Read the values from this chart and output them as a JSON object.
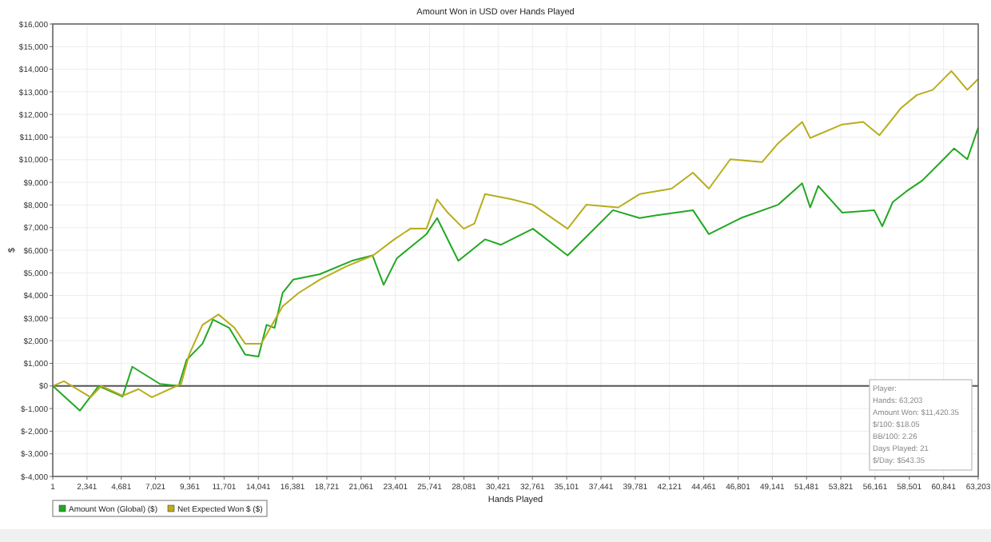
{
  "chart_data": {
    "type": "line",
    "title": "Amount Won in USD over Hands Played",
    "xlabel": "Hands Played",
    "ylabel": "$",
    "xlim": [
      1,
      63203
    ],
    "xticks": [
      1,
      {
        "value": 2341,
        "label": "2,341"
      },
      {
        "value": 4681,
        "label": "4,681"
      },
      {
        "value": 7021,
        "label": "7,021"
      },
      {
        "value": 9361,
        "label": "9,361"
      },
      {
        "value": 11701,
        "label": "11,701"
      },
      {
        "value": 14041,
        "label": "14,041"
      },
      {
        "value": 16381,
        "label": "16,381"
      },
      {
        "value": 18721,
        "label": "18,721"
      },
      {
        "value": 21061,
        "label": "21,061"
      },
      {
        "value": 23401,
        "label": "23,401"
      },
      {
        "value": 25741,
        "label": "25,741"
      },
      {
        "value": 28081,
        "label": "28,081"
      },
      {
        "value": 30421,
        "label": "30,421"
      },
      {
        "value": 32761,
        "label": "32,761"
      },
      {
        "value": 35101,
        "label": "35,101"
      },
      {
        "value": 37441,
        "label": "37,441"
      },
      {
        "value": 39781,
        "label": "39,781"
      },
      {
        "value": 42121,
        "label": "42,121"
      },
      {
        "value": 44461,
        "label": "44,461"
      },
      {
        "value": 46801,
        "label": "46,801"
      },
      {
        "value": 49141,
        "label": "49,141"
      },
      {
        "value": 51481,
        "label": "51,481"
      },
      {
        "value": 53821,
        "label": "53,821"
      },
      {
        "value": 56161,
        "label": "56,161"
      },
      {
        "value": 58501,
        "label": "58,501"
      },
      {
        "value": 60841,
        "label": "60,841"
      },
      {
        "value": 63203,
        "label": "63,203"
      }
    ],
    "ylim": [
      -4000,
      16000
    ],
    "yticks": [
      {
        "value": -4000,
        "label": "$-4,000"
      },
      {
        "value": -3000,
        "label": "$-3,000"
      },
      {
        "value": -2000,
        "label": "$-2,000"
      },
      {
        "value": -1000,
        "label": "$-1,000"
      },
      {
        "value": 0,
        "label": "$0"
      },
      {
        "value": 1000,
        "label": "$1,000"
      },
      {
        "value": 2000,
        "label": "$2,000"
      },
      {
        "value": 3000,
        "label": "$3,000"
      },
      {
        "value": 4000,
        "label": "$4,000"
      },
      {
        "value": 5000,
        "label": "$5,000"
      },
      {
        "value": 6000,
        "label": "$6,000"
      },
      {
        "value": 7000,
        "label": "$7,000"
      },
      {
        "value": 8000,
        "label": "$8,000"
      },
      {
        "value": 9000,
        "label": "$9,000"
      },
      {
        "value": 10000,
        "label": "$10,000"
      },
      {
        "value": 11000,
        "label": "$11,000"
      },
      {
        "value": 12000,
        "label": "$12,000"
      },
      {
        "value": 13000,
        "label": "$13,000"
      },
      {
        "value": 14000,
        "label": "$14,000"
      },
      {
        "value": 15000,
        "label": "$15,000"
      },
      {
        "value": 16000,
        "label": "$16,000"
      }
    ],
    "grid": true,
    "legend": "bottom left",
    "marker": "none",
    "line_style": "solid",
    "ref_lines": [
      {
        "axis": "y",
        "value": 0,
        "color": "#555555"
      }
    ],
    "annotations": [
      "Player:",
      "Hands: 63,203",
      "Amount Won: $11,420.35",
      "$/100: $18.05",
      "BB/100: 2.26",
      "Days Played: 21",
      "$/Day: $543.35"
    ],
    "series": [
      {
        "name": "Amount Won (Global) ($)",
        "color": "#22a822",
        "x": [
          1,
          1858,
          3135,
          4770,
          5430,
          7320,
          8600,
          9140,
          10230,
          10950,
          12050,
          13140,
          14050,
          14600,
          15150,
          15700,
          16420,
          18240,
          20420,
          21840,
          22600,
          23510,
          25520,
          26250,
          27700,
          29520,
          30610,
          32790,
          35160,
          38260,
          40080,
          41170,
          43720,
          44810,
          46990,
          49540,
          51180,
          51730,
          52280,
          53920,
          56100,
          56650,
          57370,
          58290,
          59380,
          60830,
          61560,
          62460,
          63203
        ],
        "values": [
          0,
          -1090,
          0,
          -470,
          850,
          90,
          0,
          1150,
          1870,
          2930,
          2570,
          1390,
          1300,
          2700,
          2570,
          4110,
          4700,
          4940,
          5530,
          5770,
          4470,
          5650,
          6710,
          7420,
          5530,
          6480,
          6240,
          6950,
          5770,
          7770,
          7420,
          7540,
          7770,
          6710,
          7420,
          8010,
          8960,
          7890,
          8840,
          7660,
          7770,
          7060,
          8130,
          8600,
          9080,
          10020,
          10500,
          10020,
          11420
        ]
      },
      {
        "name": "Net Expected Won $ ($)",
        "color": "#b8ad1c",
        "x": [
          1,
          765,
          2585,
          3320,
          4770,
          5860,
          6770,
          8770,
          9320,
          10230,
          11320,
          12410,
          13140,
          14240,
          14970,
          15700,
          16790,
          18240,
          20060,
          21880,
          23330,
          24420,
          25520,
          26250,
          26980,
          28070,
          28800,
          29520,
          31340,
          32790,
          35160,
          36440,
          38620,
          40080,
          42260,
          43720,
          44810,
          46270,
          48450,
          49540,
          51180,
          51730,
          53920,
          55350,
          56460,
          57910,
          59010,
          60100,
          61370,
          62460,
          63203
        ],
        "values": [
          0,
          210,
          -500,
          0,
          -430,
          -140,
          -500,
          90,
          1390,
          2700,
          3160,
          2570,
          1870,
          1870,
          2700,
          3520,
          4110,
          4700,
          5290,
          5770,
          6480,
          6950,
          6950,
          8250,
          7660,
          6950,
          7180,
          8480,
          8250,
          8010,
          6950,
          8010,
          7890,
          8480,
          8720,
          9430,
          8720,
          10020,
          9900,
          10730,
          11670,
          10960,
          11560,
          11670,
          11080,
          12270,
          12860,
          13090,
          13920,
          13090,
          13570
        ]
      }
    ]
  }
}
